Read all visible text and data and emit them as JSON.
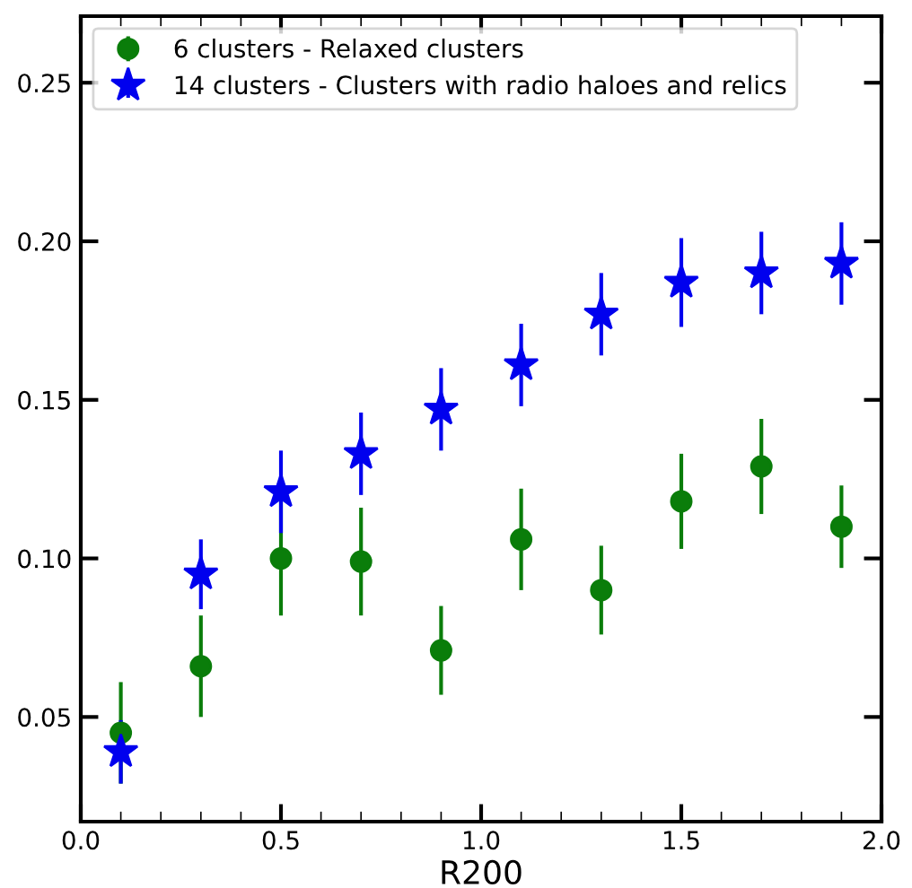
{
  "chart_data": {
    "type": "scatter",
    "xlabel": "R200",
    "x": [
      0.1,
      0.3,
      0.5,
      0.7,
      0.9,
      1.1,
      1.3,
      1.5,
      1.7,
      1.9
    ],
    "series": [
      {
        "name": "6 clusters - Relaxed clusters",
        "color": "#0a7d0a",
        "marker": "circle",
        "values": [
          0.045,
          0.066,
          0.1,
          0.099,
          0.071,
          0.106,
          0.09,
          0.118,
          0.129,
          0.11
        ],
        "errors": [
          0.016,
          0.016,
          0.018,
          0.017,
          0.014,
          0.016,
          0.014,
          0.015,
          0.015,
          0.013
        ]
      },
      {
        "name": "14 clusters - Clusters with radio haloes and relics",
        "color": "#0000ee",
        "marker": "star",
        "values": [
          0.039,
          0.095,
          0.121,
          0.133,
          0.147,
          0.161,
          0.177,
          0.187,
          0.19,
          0.193
        ],
        "errors": [
          0.01,
          0.011,
          0.013,
          0.013,
          0.013,
          0.013,
          0.013,
          0.014,
          0.013,
          0.013
        ]
      }
    ],
    "xlim": [
      0.0,
      2.0
    ],
    "xticks": [
      {
        "value": 0,
        "label": "0.0"
      },
      0.5,
      {
        "value": 1,
        "label": "1.0"
      },
      1.5,
      {
        "value": 2,
        "label": "2.0"
      }
    ],
    "ylim": [
      0.017,
      0.271
    ],
    "yticks": [
      0.05,
      {
        "value": 0.1,
        "label": "0.10"
      },
      0.15,
      {
        "value": 0.2,
        "label": "0.20"
      },
      0.25
    ],
    "grid": false,
    "legend": "top left"
  }
}
